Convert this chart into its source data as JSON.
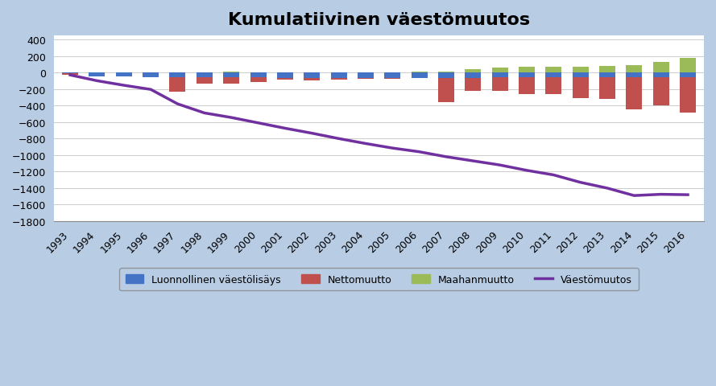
{
  "title": "Kumulatiivinen väestömuutos",
  "years": [
    1993,
    1994,
    1995,
    1996,
    1997,
    1998,
    1999,
    2000,
    2001,
    2002,
    2003,
    2004,
    2005,
    2006,
    2007,
    2008,
    2009,
    2010,
    2011,
    2012,
    2013,
    2014,
    2015,
    2016
  ],
  "natural_increase": [
    -30,
    -50,
    -50,
    -55,
    -55,
    -55,
    -55,
    -60,
    -65,
    -65,
    -65,
    -65,
    -65,
    -65,
    -65,
    -65,
    -60,
    -60,
    -60,
    -55,
    -55,
    -55,
    -55,
    -55
  ],
  "net_migration": [
    20,
    0,
    0,
    0,
    -180,
    -80,
    -80,
    -60,
    -20,
    -30,
    -20,
    -15,
    -10,
    -5,
    -290,
    -160,
    -160,
    -200,
    -200,
    -260,
    -270,
    -390,
    -340,
    -430
  ],
  "immigration": [
    0,
    0,
    0,
    0,
    0,
    0,
    15,
    0,
    0,
    0,
    0,
    0,
    0,
    10,
    15,
    40,
    55,
    65,
    65,
    65,
    80,
    90,
    125,
    175
  ],
  "population_change": [
    -30,
    -100,
    -155,
    -205,
    -380,
    -490,
    -545,
    -610,
    -675,
    -735,
    -800,
    -860,
    -915,
    -960,
    -1020,
    -1070,
    -1120,
    -1185,
    -1240,
    -1330,
    -1400,
    -1490,
    -1475,
    -1480
  ],
  "bar_color_blue": "#4472C4",
  "bar_color_red": "#C0504D",
  "bar_color_green": "#9BBB59",
  "line_color": "#7030A0",
  "background_color": "#B8CCE4",
  "plot_background": "#FFFFFF",
  "ylim": [
    -1800,
    450
  ],
  "yticks": [
    -1800,
    -1600,
    -1400,
    -1200,
    -1000,
    -800,
    -600,
    -400,
    -200,
    0,
    200,
    400
  ],
  "legend_labels": [
    "Luonnollinen väestölisäys",
    "Nettomuutto",
    "Maahanmuutto",
    "Väestömuutos"
  ],
  "title_fontsize": 16,
  "tick_fontsize": 9,
  "legend_fontsize": 9,
  "bar_width": 0.6
}
